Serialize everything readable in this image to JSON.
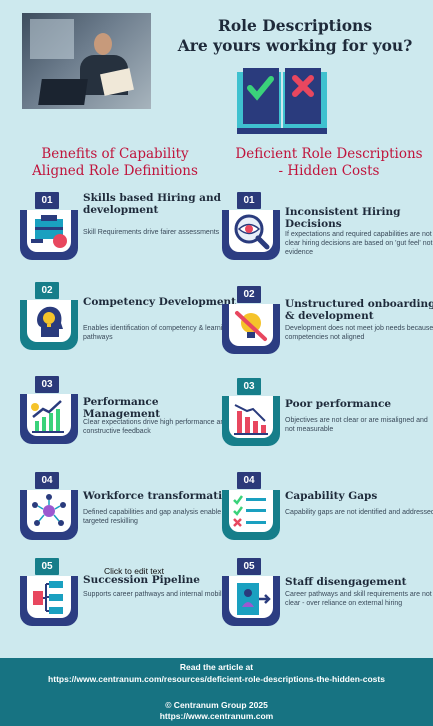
{
  "header": {
    "title_line1": "Role Descriptions",
    "title_line2": "Are yours working for you?"
  },
  "columns": {
    "left_heading_line1": "Benefits of Capability",
    "left_heading_line2": "Aligned Role Definitions",
    "right_heading_line1": "Deficient Role Descriptions",
    "right_heading_line2": "- Hidden Costs"
  },
  "benefits": [
    {
      "num": "01",
      "title": "Skills based Hiring and development",
      "desc": "Skill Requirements drive fairer assessments",
      "icon": "hiring-icon"
    },
    {
      "num": "02",
      "title": "Competency Development",
      "desc": "Enables identification of competency & learning pathways",
      "icon": "lightbulb-head-icon"
    },
    {
      "num": "03",
      "title": "Performance Management",
      "desc": "Clear expectations drive high performance and constructive feedback",
      "icon": "growth-chart-icon"
    },
    {
      "num": "04",
      "title": "Workforce transformation",
      "desc": "Defined capabilities and gap analysis enable targeted reskilling",
      "icon": "network-people-icon"
    },
    {
      "num": "05",
      "title": "Succession Pipeline",
      "desc": "Supports career pathways and internal mobility",
      "icon": "hierarchy-icon"
    }
  ],
  "costs": [
    {
      "num": "01",
      "title": "Inconsistent Hiring Decisions",
      "desc": "If expectations and required capabilities are not clear hiring decisions are based on 'gut feel' not evidence",
      "icon": "magnifier-eye-icon"
    },
    {
      "num": "02",
      "title": "Unstructured onboarding & development",
      "desc": "Development does not meet job needs because competencies not aligned",
      "icon": "blocked-lightbulb-icon"
    },
    {
      "num": "03",
      "title": "Poor performance",
      "desc": "Objectives are not clear or are misaligned and not measurable",
      "icon": "declining-chart-icon"
    },
    {
      "num": "04",
      "title": "Capability Gaps",
      "desc": "Capability gaps are not identified and addressed",
      "icon": "checklist-icon"
    },
    {
      "num": "05",
      "title": "Staff disengagement",
      "desc": "Career pathways and skill requirements are not clear - over reliance on external hiring",
      "icon": "person-exit-icon"
    }
  ],
  "hint": "Click to edit text",
  "footer": {
    "read_label": "Read the article at",
    "article_url": "https://www.centranum.com/resources/deficient-role-descriptions-the-hidden-costs",
    "copyright": "© Centranum Group 2025",
    "site_url": "https://www.centranum.com"
  },
  "colors": {
    "background": "#cde9ee",
    "heading_red": "#c0143c",
    "navy": "#2b3a7a",
    "teal": "#167e8a",
    "footer": "#177382"
  }
}
